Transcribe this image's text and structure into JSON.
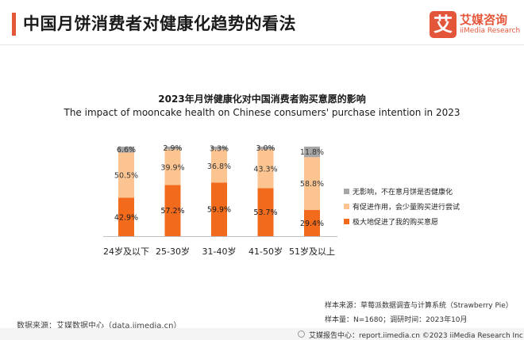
{
  "header": {
    "title": "中国月饼消费者对健康化趋势的看法",
    "accent_color": "#e4563a",
    "logo": {
      "mark": "艾",
      "name": "艾媒咨询",
      "sub": "iiMedia Research",
      "color": "#e4563a"
    }
  },
  "chart_data": {
    "type": "bar",
    "stacked": true,
    "title": "2023年月饼健康化对中国消费者购买意愿的影响",
    "subtitle": "The impact of mooncake health on Chinese consumers' purchase intention in 2023",
    "categories": [
      "24岁及以下",
      "25-30岁",
      "31-40岁",
      "41-50岁",
      "51岁及以上"
    ],
    "series": [
      {
        "name": "极大地促进了我的购买意愿",
        "color": "#f26b1d",
        "values": [
          42.9,
          57.2,
          59.9,
          53.7,
          29.4
        ],
        "labels": [
          "42.9%",
          "57.2%",
          "59.9%",
          "53.7%",
          "29.4%"
        ]
      },
      {
        "name": "有促进作用，会少量购买进行尝试",
        "color": "#fbc490",
        "values": [
          50.5,
          39.9,
          36.8,
          43.3,
          58.8
        ],
        "labels": [
          "50.5%",
          "39.9%",
          "36.8%",
          "43.3%",
          "58.8%"
        ]
      },
      {
        "name": "无影响，不在意月饼是否健康化",
        "color": "#a6a6a6",
        "values": [
          6.6,
          2.9,
          3.3,
          3.0,
          11.8
        ],
        "labels": [
          "6.6%",
          "2.9%",
          "3.3%",
          "3.0%",
          "11.8%"
        ]
      }
    ],
    "ylim": [
      0,
      100
    ],
    "grid": false,
    "legend_position": "right"
  },
  "footer": {
    "data_source": "数据来源：艾媒数据中心（data.iimedia.cn）",
    "sample_source": "样本来源：草莓派数据调查与计算系统（Strawberry Pie）",
    "sample_info": "样本量：N=1680；调研时间：2023年10月",
    "bottom_line": "艾媒报告中心：report.iimedia.cn  ©2023  iiMedia Research  Inc"
  }
}
